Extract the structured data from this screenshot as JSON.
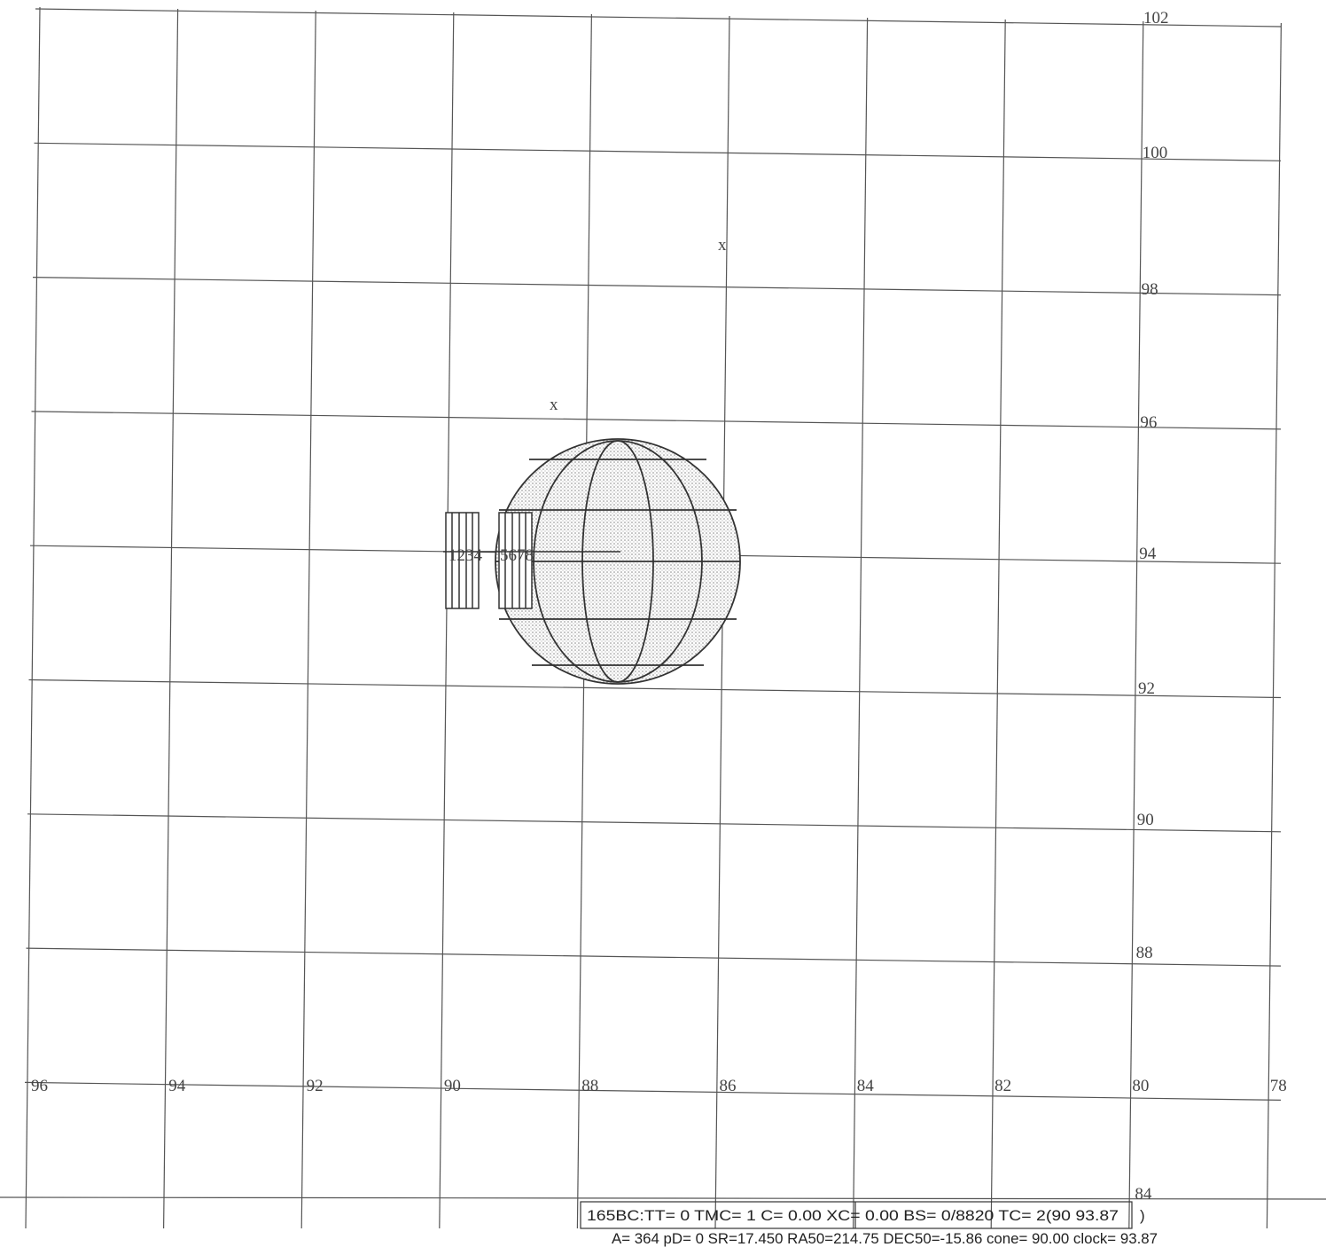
{
  "x_labels": [
    "96",
    "94",
    "92",
    "90",
    "88",
    "86",
    "84",
    "82",
    "80",
    "78"
  ],
  "y_labels": [
    "102",
    "100",
    "98",
    "96",
    "94",
    "92",
    "90",
    "88",
    "84"
  ],
  "markers": [
    "x",
    "x"
  ],
  "object_labels": [
    "1234",
    "5678"
  ],
  "status": {
    "line1": "165BC:TT=  0 TMC= 1 C=   0.00 XC=   0.00 BS= 0/8820 TC= 2(90        93.87",
    "line1_end": ")",
    "line2": "A= 364 pD=    0 SR=17.450 RA50=214.75 DEC50=-15.86 cone= 90.00 clock= 93.87"
  }
}
